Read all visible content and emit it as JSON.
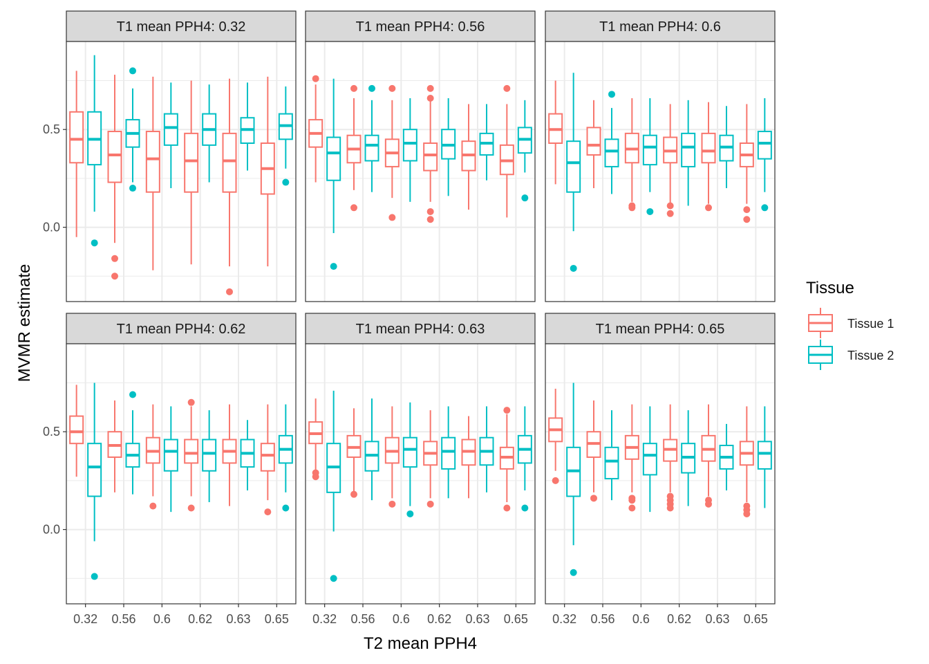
{
  "chart_data": {
    "type": "boxplot",
    "xlabel": "T2 mean PPH4",
    "ylabel": "MVMR estimate",
    "categories": [
      "0.32",
      "0.56",
      "0.6",
      "0.62",
      "0.63",
      "0.65"
    ],
    "ylim": [
      -0.38,
      0.95
    ],
    "y_ticks": [
      0.0,
      0.5
    ],
    "y_tick_labels": [
      "0.0",
      "0.5"
    ],
    "grid": true,
    "legend": {
      "title": "Tissue",
      "position": "right",
      "entries": [
        {
          "name": "Tissue 1",
          "color": "#F8766D"
        },
        {
          "name": "Tissue 2",
          "color": "#00BFC4"
        }
      ]
    },
    "panels": [
      {
        "title": "T1 mean PPH4: 0.32",
        "series": [
          {
            "name": "Tissue 1",
            "boxes": [
              {
                "lo": -0.05,
                "q1": 0.33,
                "med": 0.45,
                "q3": 0.59,
                "hi": 0.8,
                "outliers": []
              },
              {
                "lo": -0.08,
                "q1": 0.23,
                "med": 0.37,
                "q3": 0.49,
                "hi": 0.78,
                "outliers": [
                  -0.16,
                  -0.25
                ]
              },
              {
                "lo": -0.22,
                "q1": 0.18,
                "med": 0.35,
                "q3": 0.49,
                "hi": 0.77,
                "outliers": []
              },
              {
                "lo": -0.19,
                "q1": 0.18,
                "med": 0.34,
                "q3": 0.48,
                "hi": 0.75,
                "outliers": []
              },
              {
                "lo": -0.2,
                "q1": 0.18,
                "med": 0.34,
                "q3": 0.48,
                "hi": 0.76,
                "outliers": [
                  -0.33
                ]
              },
              {
                "lo": -0.2,
                "q1": 0.17,
                "med": 0.3,
                "q3": 0.43,
                "hi": 0.77,
                "outliers": []
              }
            ]
          },
          {
            "name": "Tissue 2",
            "boxes": [
              {
                "lo": 0.08,
                "q1": 0.32,
                "med": 0.45,
                "q3": 0.59,
                "hi": 0.88,
                "outliers": [
                  -0.08
                ]
              },
              {
                "lo": 0.23,
                "q1": 0.41,
                "med": 0.48,
                "q3": 0.55,
                "hi": 0.71,
                "outliers": [
                  0.8,
                  0.2
                ]
              },
              {
                "lo": 0.2,
                "q1": 0.42,
                "med": 0.51,
                "q3": 0.58,
                "hi": 0.74,
                "outliers": []
              },
              {
                "lo": 0.23,
                "q1": 0.42,
                "med": 0.5,
                "q3": 0.58,
                "hi": 0.73,
                "outliers": []
              },
              {
                "lo": 0.29,
                "q1": 0.43,
                "med": 0.5,
                "q3": 0.56,
                "hi": 0.74,
                "outliers": []
              },
              {
                "lo": 0.3,
                "q1": 0.45,
                "med": 0.52,
                "q3": 0.58,
                "hi": 0.72,
                "outliers": [
                  0.23
                ]
              }
            ]
          }
        ]
      },
      {
        "title": "T1 mean PPH4: 0.56",
        "series": [
          {
            "name": "Tissue 1",
            "boxes": [
              {
                "lo": 0.23,
                "q1": 0.41,
                "med": 0.48,
                "q3": 0.55,
                "hi": 0.73,
                "outliers": [
                  0.76
                ]
              },
              {
                "lo": 0.19,
                "q1": 0.33,
                "med": 0.4,
                "q3": 0.47,
                "hi": 0.66,
                "outliers": [
                  0.71,
                  0.1
                ]
              },
              {
                "lo": 0.15,
                "q1": 0.31,
                "med": 0.38,
                "q3": 0.45,
                "hi": 0.65,
                "outliers": [
                  0.71,
                  0.05
                ]
              },
              {
                "lo": 0.13,
                "q1": 0.29,
                "med": 0.37,
                "q3": 0.43,
                "hi": 0.65,
                "outliers": [
                  0.71,
                  0.66,
                  0.08,
                  0.04
                ]
              },
              {
                "lo": 0.09,
                "q1": 0.29,
                "med": 0.37,
                "q3": 0.44,
                "hi": 0.63,
                "outliers": []
              },
              {
                "lo": 0.05,
                "q1": 0.27,
                "med": 0.34,
                "q3": 0.42,
                "hi": 0.63,
                "outliers": [
                  0.71
                ]
              }
            ]
          },
          {
            "name": "Tissue 2",
            "boxes": [
              {
                "lo": -0.03,
                "q1": 0.24,
                "med": 0.38,
                "q3": 0.46,
                "hi": 0.76,
                "outliers": [
                  -0.2
                ]
              },
              {
                "lo": 0.18,
                "q1": 0.34,
                "med": 0.42,
                "q3": 0.47,
                "hi": 0.65,
                "outliers": [
                  0.71
                ]
              },
              {
                "lo": 0.13,
                "q1": 0.34,
                "med": 0.43,
                "q3": 0.5,
                "hi": 0.66,
                "outliers": []
              },
              {
                "lo": 0.16,
                "q1": 0.35,
                "med": 0.42,
                "q3": 0.5,
                "hi": 0.66,
                "outliers": []
              },
              {
                "lo": 0.24,
                "q1": 0.37,
                "med": 0.43,
                "q3": 0.48,
                "hi": 0.63,
                "outliers": []
              },
              {
                "lo": 0.28,
                "q1": 0.38,
                "med": 0.45,
                "q3": 0.51,
                "hi": 0.65,
                "outliers": [
                  0.15
                ]
              }
            ]
          }
        ]
      },
      {
        "title": "T1 mean PPH4: 0.6",
        "series": [
          {
            "name": "Tissue 1",
            "boxes": [
              {
                "lo": 0.22,
                "q1": 0.43,
                "med": 0.5,
                "q3": 0.58,
                "hi": 0.75,
                "outliers": []
              },
              {
                "lo": 0.2,
                "q1": 0.37,
                "med": 0.42,
                "q3": 0.51,
                "hi": 0.65,
                "outliers": []
              },
              {
                "lo": 0.13,
                "q1": 0.33,
                "med": 0.4,
                "q3": 0.48,
                "hi": 0.66,
                "outliers": [
                  0.11,
                  0.1
                ]
              },
              {
                "lo": 0.12,
                "q1": 0.33,
                "med": 0.39,
                "q3": 0.46,
                "hi": 0.63,
                "outliers": [
                  0.11,
                  0.07
                ]
              },
              {
                "lo": 0.12,
                "q1": 0.33,
                "med": 0.39,
                "q3": 0.48,
                "hi": 0.64,
                "outliers": [
                  0.1
                ]
              },
              {
                "lo": 0.12,
                "q1": 0.31,
                "med": 0.37,
                "q3": 0.43,
                "hi": 0.63,
                "outliers": [
                  0.09,
                  0.04
                ]
              }
            ]
          },
          {
            "name": "Tissue 2",
            "boxes": [
              {
                "lo": -0.02,
                "q1": 0.18,
                "med": 0.33,
                "q3": 0.44,
                "hi": 0.79,
                "outliers": [
                  -0.21
                ]
              },
              {
                "lo": 0.17,
                "q1": 0.31,
                "med": 0.39,
                "q3": 0.45,
                "hi": 0.61,
                "outliers": [
                  0.68
                ]
              },
              {
                "lo": 0.18,
                "q1": 0.32,
                "med": 0.41,
                "q3": 0.47,
                "hi": 0.66,
                "outliers": [
                  0.08
                ]
              },
              {
                "lo": 0.11,
                "q1": 0.31,
                "med": 0.41,
                "q3": 0.48,
                "hi": 0.65,
                "outliers": []
              },
              {
                "lo": 0.2,
                "q1": 0.34,
                "med": 0.41,
                "q3": 0.47,
                "hi": 0.62,
                "outliers": []
              },
              {
                "lo": 0.18,
                "q1": 0.35,
                "med": 0.43,
                "q3": 0.49,
                "hi": 0.66,
                "outliers": [
                  0.1
                ]
              }
            ]
          }
        ]
      },
      {
        "title": "T1 mean PPH4: 0.62",
        "series": [
          {
            "name": "Tissue 1",
            "boxes": [
              {
                "lo": 0.27,
                "q1": 0.44,
                "med": 0.5,
                "q3": 0.58,
                "hi": 0.74,
                "outliers": []
              },
              {
                "lo": 0.19,
                "q1": 0.37,
                "med": 0.43,
                "q3": 0.5,
                "hi": 0.66,
                "outliers": []
              },
              {
                "lo": 0.17,
                "q1": 0.34,
                "med": 0.4,
                "q3": 0.47,
                "hi": 0.64,
                "outliers": [
                  0.12
                ]
              },
              {
                "lo": 0.17,
                "q1": 0.34,
                "med": 0.39,
                "q3": 0.46,
                "hi": 0.63,
                "outliers": [
                  0.65,
                  0.11
                ]
              },
              {
                "lo": 0.12,
                "q1": 0.34,
                "med": 0.4,
                "q3": 0.46,
                "hi": 0.64,
                "outliers": []
              },
              {
                "lo": 0.15,
                "q1": 0.3,
                "med": 0.38,
                "q3": 0.44,
                "hi": 0.64,
                "outliers": [
                  0.09
                ]
              }
            ]
          },
          {
            "name": "Tissue 2",
            "boxes": [
              {
                "lo": -0.06,
                "q1": 0.17,
                "med": 0.32,
                "q3": 0.44,
                "hi": 0.75,
                "outliers": [
                  -0.24
                ]
              },
              {
                "lo": 0.18,
                "q1": 0.32,
                "med": 0.38,
                "q3": 0.44,
                "hi": 0.61,
                "outliers": [
                  0.69
                ]
              },
              {
                "lo": 0.09,
                "q1": 0.3,
                "med": 0.4,
                "q3": 0.46,
                "hi": 0.63,
                "outliers": []
              },
              {
                "lo": 0.14,
                "q1": 0.3,
                "med": 0.39,
                "q3": 0.46,
                "hi": 0.61,
                "outliers": []
              },
              {
                "lo": 0.2,
                "q1": 0.32,
                "med": 0.39,
                "q3": 0.46,
                "hi": 0.56,
                "outliers": []
              },
              {
                "lo": 0.19,
                "q1": 0.34,
                "med": 0.41,
                "q3": 0.48,
                "hi": 0.64,
                "outliers": [
                  0.11
                ]
              }
            ]
          }
        ]
      },
      {
        "title": "T1 mean PPH4: 0.63",
        "series": [
          {
            "name": "Tissue 1",
            "boxes": [
              {
                "lo": 0.3,
                "q1": 0.44,
                "med": 0.49,
                "q3": 0.55,
                "hi": 0.67,
                "outliers": [
                  0.29,
                  0.27
                ]
              },
              {
                "lo": 0.19,
                "q1": 0.37,
                "med": 0.42,
                "q3": 0.48,
                "hi": 0.62,
                "outliers": [
                  0.18
                ]
              },
              {
                "lo": 0.16,
                "q1": 0.34,
                "med": 0.4,
                "q3": 0.47,
                "hi": 0.63,
                "outliers": [
                  0.13
                ]
              },
              {
                "lo": 0.16,
                "q1": 0.33,
                "med": 0.39,
                "q3": 0.45,
                "hi": 0.61,
                "outliers": [
                  0.13
                ]
              },
              {
                "lo": 0.16,
                "q1": 0.33,
                "med": 0.4,
                "q3": 0.46,
                "hi": 0.58,
                "outliers": []
              },
              {
                "lo": 0.14,
                "q1": 0.31,
                "med": 0.37,
                "q3": 0.42,
                "hi": 0.59,
                "outliers": [
                  0.61,
                  0.11
                ]
              }
            ]
          },
          {
            "name": "Tissue 2",
            "boxes": [
              {
                "lo": -0.01,
                "q1": 0.19,
                "med": 0.32,
                "q3": 0.44,
                "hi": 0.71,
                "outliers": [
                  -0.25
                ]
              },
              {
                "lo": 0.15,
                "q1": 0.3,
                "med": 0.38,
                "q3": 0.45,
                "hi": 0.67,
                "outliers": []
              },
              {
                "lo": 0.12,
                "q1": 0.32,
                "med": 0.41,
                "q3": 0.47,
                "hi": 0.65,
                "outliers": [
                  0.08
                ]
              },
              {
                "lo": 0.16,
                "q1": 0.31,
                "med": 0.4,
                "q3": 0.47,
                "hi": 0.63,
                "outliers": []
              },
              {
                "lo": 0.19,
                "q1": 0.33,
                "med": 0.4,
                "q3": 0.47,
                "hi": 0.63,
                "outliers": []
              },
              {
                "lo": 0.2,
                "q1": 0.34,
                "med": 0.41,
                "q3": 0.48,
                "hi": 0.63,
                "outliers": [
                  0.11
                ]
              }
            ]
          }
        ]
      },
      {
        "title": "T1 mean PPH4: 0.65",
        "series": [
          {
            "name": "Tissue 1",
            "boxes": [
              {
                "lo": 0.3,
                "q1": 0.45,
                "med": 0.51,
                "q3": 0.57,
                "hi": 0.72,
                "outliers": [
                  0.25
                ]
              },
              {
                "lo": 0.19,
                "q1": 0.37,
                "med": 0.44,
                "q3": 0.5,
                "hi": 0.66,
                "outliers": [
                  0.16
                ]
              },
              {
                "lo": 0.19,
                "q1": 0.36,
                "med": 0.42,
                "q3": 0.48,
                "hi": 0.64,
                "outliers": [
                  0.16,
                  0.15,
                  0.11
                ]
              },
              {
                "lo": 0.19,
                "q1": 0.35,
                "med": 0.41,
                "q3": 0.46,
                "hi": 0.64,
                "outliers": [
                  0.17,
                  0.15,
                  0.13,
                  0.11
                ]
              },
              {
                "lo": 0.17,
                "q1": 0.35,
                "med": 0.41,
                "q3": 0.48,
                "hi": 0.64,
                "outliers": [
                  0.15,
                  0.13
                ]
              },
              {
                "lo": 0.14,
                "q1": 0.33,
                "med": 0.39,
                "q3": 0.45,
                "hi": 0.63,
                "outliers": [
                  0.12,
                  0.1,
                  0.08
                ]
              }
            ]
          },
          {
            "name": "Tissue 2",
            "boxes": [
              {
                "lo": -0.08,
                "q1": 0.17,
                "med": 0.3,
                "q3": 0.42,
                "hi": 0.75,
                "outliers": [
                  -0.22
                ]
              },
              {
                "lo": 0.15,
                "q1": 0.26,
                "med": 0.35,
                "q3": 0.42,
                "hi": 0.61,
                "outliers": []
              },
              {
                "lo": 0.09,
                "q1": 0.28,
                "med": 0.38,
                "q3": 0.44,
                "hi": 0.63,
                "outliers": []
              },
              {
                "lo": 0.12,
                "q1": 0.29,
                "med": 0.37,
                "q3": 0.44,
                "hi": 0.61,
                "outliers": []
              },
              {
                "lo": 0.2,
                "q1": 0.31,
                "med": 0.37,
                "q3": 0.43,
                "hi": 0.54,
                "outliers": []
              },
              {
                "lo": 0.11,
                "q1": 0.31,
                "med": 0.39,
                "q3": 0.45,
                "hi": 0.63,
                "outliers": []
              }
            ]
          }
        ]
      }
    ]
  }
}
